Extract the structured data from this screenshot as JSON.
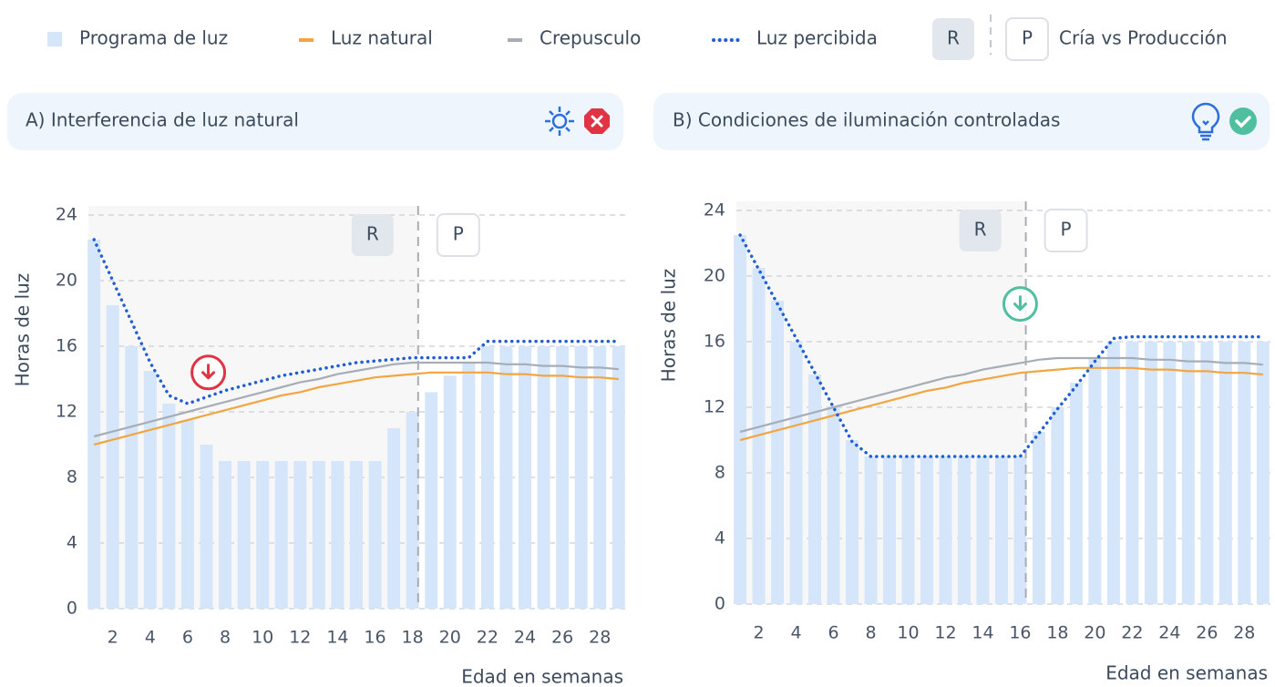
{
  "legend": {
    "items": [
      {
        "name": "Programa de luz",
        "color": "#d5e6fa",
        "style": "square"
      },
      {
        "name": "Luz natural",
        "color": "#f2a541",
        "style": "dash"
      },
      {
        "name": "Crepusculo",
        "color": "#a7adb6",
        "style": "dash"
      },
      {
        "name": "Luz percibida",
        "color": "#1f5fd6",
        "style": "dotted"
      }
    ],
    "phases": [
      "R",
      "P"
    ],
    "phase_text": "Cría vs Producción"
  },
  "chart_data": [
    {
      "type": "bar-line",
      "title": "A) Interferencia de luz natural",
      "ylabel": "Horas de luz",
      "xlabel": "Edad en semanas",
      "x": [
        1,
        2,
        3,
        4,
        5,
        6,
        7,
        8,
        9,
        10,
        11,
        12,
        13,
        14,
        15,
        16,
        17,
        18,
        19,
        20,
        21,
        22,
        23,
        24,
        25,
        26,
        27,
        28,
        29
      ],
      "xlim": [
        0.7,
        29.4
      ],
      "xticks": [
        2,
        4,
        6,
        8,
        10,
        12,
        14,
        16,
        18,
        20,
        22,
        24,
        26,
        28
      ],
      "ylim": [
        0,
        24
      ],
      "yticks": [
        0,
        4,
        8,
        12,
        16,
        20,
        24
      ],
      "grid": true,
      "divider": 18.3,
      "phases": [
        "R",
        "P"
      ],
      "series": [
        {
          "values": [
            22.5,
            18.5,
            16,
            14.5,
            12.5,
            11.5,
            10,
            9,
            9,
            9,
            9,
            9,
            9,
            9,
            9,
            9,
            11,
            12,
            13.2,
            14.2,
            15,
            16,
            16,
            16,
            16,
            16,
            16,
            16,
            16
          ]
        },
        {
          "values": [
            10,
            10.3,
            10.6,
            10.9,
            11.2,
            11.5,
            11.8,
            12.1,
            12.4,
            12.7,
            13,
            13.2,
            13.5,
            13.7,
            13.9,
            14.1,
            14.2,
            14.3,
            14.4,
            14.4,
            14.4,
            14.4,
            14.3,
            14.3,
            14.2,
            14.2,
            14.1,
            14.1,
            14
          ]
        },
        {
          "values": [
            10.5,
            10.8,
            11.1,
            11.4,
            11.7,
            12,
            12.3,
            12.6,
            12.9,
            13.2,
            13.5,
            13.8,
            14,
            14.3,
            14.5,
            14.7,
            14.9,
            15,
            15,
            15,
            15,
            15,
            14.9,
            14.9,
            14.8,
            14.8,
            14.7,
            14.7,
            14.6
          ]
        },
        {
          "values": [
            22.5,
            20,
            17.5,
            15,
            13,
            12.5,
            12.9,
            13.3,
            13.6,
            13.9,
            14.2,
            14.4,
            14.6,
            14.8,
            15,
            15.1,
            15.2,
            15.3,
            15.3,
            15.3,
            15.3,
            16.3,
            16.3,
            16.3,
            16.3,
            16.3,
            16.3,
            16.3,
            16.3
          ]
        }
      ],
      "marker": {
        "x": 7.1,
        "y": 14.4,
        "color": "#e03444"
      }
    },
    {
      "type": "bar-line",
      "title": "B) Condiciones de iluminación controladas",
      "ylabel": "Horas de luz",
      "xlabel": "Edad en semanas",
      "x": [
        1,
        2,
        3,
        4,
        5,
        6,
        7,
        8,
        9,
        10,
        11,
        12,
        13,
        14,
        15,
        16,
        17,
        18,
        19,
        20,
        21,
        22,
        23,
        24,
        25,
        26,
        27,
        28,
        29
      ],
      "xlim": [
        0.8,
        29.4
      ],
      "xticks": [
        2,
        4,
        6,
        8,
        10,
        12,
        14,
        16,
        18,
        20,
        22,
        24,
        26,
        28
      ],
      "ylim": [
        0,
        24
      ],
      "yticks": [
        0,
        4,
        8,
        12,
        16,
        20,
        24
      ],
      "grid": true,
      "divider": 16.3,
      "phases": [
        "R",
        "P"
      ],
      "series": [
        {
          "values": [
            22.5,
            20.5,
            18.5,
            16,
            14,
            12,
            10,
            9,
            9,
            9,
            9,
            9,
            9,
            9,
            9,
            9,
            10.5,
            12,
            13.5,
            15,
            16,
            16,
            16,
            16,
            16,
            16,
            16,
            16,
            16
          ]
        },
        {
          "values": [
            10,
            10.3,
            10.6,
            10.9,
            11.2,
            11.5,
            11.8,
            12.1,
            12.4,
            12.7,
            13,
            13.2,
            13.5,
            13.7,
            13.9,
            14.1,
            14.2,
            14.3,
            14.4,
            14.4,
            14.4,
            14.4,
            14.3,
            14.3,
            14.2,
            14.2,
            14.1,
            14.1,
            14
          ]
        },
        {
          "values": [
            10.5,
            10.8,
            11.1,
            11.4,
            11.7,
            12,
            12.3,
            12.6,
            12.9,
            13.2,
            13.5,
            13.8,
            14,
            14.3,
            14.5,
            14.7,
            14.9,
            15,
            15,
            15,
            15,
            15,
            14.9,
            14.9,
            14.8,
            14.8,
            14.7,
            14.7,
            14.6
          ]
        },
        {
          "values": [
            22.5,
            20.4,
            18.3,
            16.2,
            14.1,
            12,
            9.9,
            9,
            9,
            9,
            9,
            9,
            9,
            9,
            9,
            9,
            10.4,
            11.9,
            13.3,
            14.8,
            16.2,
            16.3,
            16.3,
            16.3,
            16.3,
            16.3,
            16.3,
            16.3,
            16.3
          ]
        }
      ],
      "marker": {
        "x": 16,
        "y": 18.3,
        "color": "#4fbf9f"
      }
    }
  ]
}
